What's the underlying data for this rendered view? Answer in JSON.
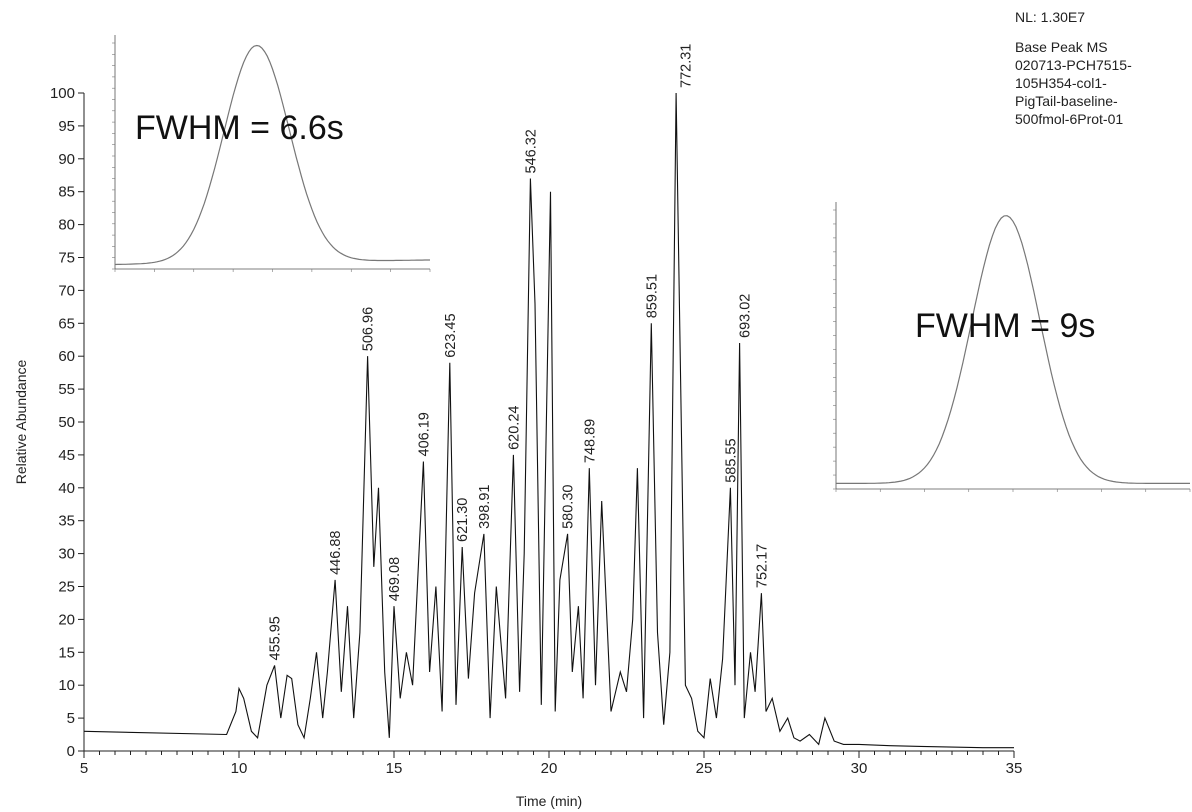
{
  "info": {
    "nl": "NL: 1.30E7",
    "lines": [
      "Base Peak  MS",
      "020713-PCH7515-",
      "105H354-col1-",
      "PigTail-baseline-",
      "500fmol-6Prot-01"
    ]
  },
  "chart_data": [
    {
      "type": "line",
      "role": "main",
      "xlabel": "Time (min)",
      "ylabel": "Relative Abundance",
      "xlim": [
        5,
        35
      ],
      "ylim": [
        0,
        100
      ],
      "xticks": [
        5,
        10,
        15,
        20,
        25,
        30,
        35
      ],
      "yticks": [
        0,
        5,
        10,
        15,
        20,
        25,
        30,
        35,
        40,
        45,
        50,
        55,
        60,
        65,
        70,
        75,
        80,
        85,
        90,
        95,
        100
      ],
      "grid": false,
      "series": [
        {
          "x": [
            5,
            9.6,
            9.9,
            10.0,
            10.15,
            10.4,
            10.6,
            10.9,
            11.15,
            11.35,
            11.55,
            11.7,
            11.9,
            12.1,
            12.3,
            12.5,
            12.7,
            12.85,
            13.1,
            13.3,
            13.5,
            13.7,
            13.9,
            14.15,
            14.35,
            14.5,
            14.7,
            14.85,
            15.0,
            15.2,
            15.4,
            15.6,
            15.95,
            16.15,
            16.35,
            16.55,
            16.8,
            17.0,
            17.2,
            17.4,
            17.6,
            17.9,
            18.1,
            18.3,
            18.6,
            18.85,
            19.05,
            19.2,
            19.4,
            19.55,
            19.75,
            20.05,
            20.2,
            20.35,
            20.6,
            20.75,
            20.95,
            21.1,
            21.3,
            21.5,
            21.7,
            22.0,
            22.3,
            22.5,
            22.7,
            22.85,
            23.05,
            23.3,
            23.5,
            23.7,
            23.9,
            24.1,
            24.4,
            24.6,
            24.8,
            25.0,
            25.2,
            25.4,
            25.6,
            25.85,
            26.0,
            26.15,
            26.3,
            26.5,
            26.65,
            26.85,
            27.0,
            27.2,
            27.45,
            27.7,
            27.9,
            28.1,
            28.4,
            28.7,
            28.9,
            29.2,
            29.5,
            30.0,
            31.0,
            32.0,
            33.0,
            34.0,
            35.0
          ],
          "y": [
            3,
            2.5,
            6,
            9.5,
            8,
            3,
            2,
            10,
            13,
            5,
            11.5,
            11,
            4,
            2,
            8,
            15,
            5,
            12,
            26,
            9,
            22,
            5,
            18,
            60,
            28,
            40,
            12,
            2,
            22,
            8,
            15,
            10,
            44,
            12,
            25,
            6,
            59,
            7,
            31,
            11,
            24,
            33,
            5,
            25,
            8,
            45,
            9,
            30,
            87,
            68,
            7,
            85,
            6,
            26,
            33,
            12,
            22,
            8,
            43,
            10,
            38,
            6,
            12,
            9,
            20,
            43,
            5,
            65,
            18,
            4,
            15,
            100,
            10,
            8,
            3,
            2,
            11,
            5,
            14,
            40,
            10,
            62,
            5,
            15,
            9,
            24,
            6,
            8,
            3,
            5,
            2,
            1.5,
            2.5,
            1,
            5,
            1.5,
            1,
            1,
            0.8,
            0.7,
            0.6,
            0.5,
            0.5
          ]
        }
      ],
      "annotations": [
        {
          "text": "455.95",
          "x": 11.15,
          "y": 13
        },
        {
          "text": "446.88",
          "x": 13.1,
          "y": 26
        },
        {
          "text": "506.96",
          "x": 14.15,
          "y": 60
        },
        {
          "text": "469.08",
          "x": 15.0,
          "y": 22
        },
        {
          "text": "406.19",
          "x": 15.95,
          "y": 44
        },
        {
          "text": "623.45",
          "x": 16.8,
          "y": 59
        },
        {
          "text": "621.30",
          "x": 17.2,
          "y": 31
        },
        {
          "text": "398.91",
          "x": 17.9,
          "y": 33
        },
        {
          "text": "620.24",
          "x": 18.85,
          "y": 45
        },
        {
          "text": "546.32",
          "x": 19.4,
          "y": 87
        },
        {
          "text": "580.30",
          "x": 20.6,
          "y": 33
        },
        {
          "text": "748.89",
          "x": 21.3,
          "y": 43
        },
        {
          "text": "859.51",
          "x": 23.3,
          "y": 65
        },
        {
          "text": "772.31",
          "x": 24.4,
          "y": 100
        },
        {
          "text": "585.55",
          "x": 25.85,
          "y": 40
        },
        {
          "text": "693.02",
          "x": 26.3,
          "y": 62
        },
        {
          "text": "752.17",
          "x": 26.85,
          "y": 24
        }
      ]
    },
    {
      "type": "line",
      "role": "inset",
      "fwhm_label": "FWHM = 6.6s",
      "shape": "gaussian",
      "peak_fraction": 0.45,
      "width_fraction": 0.14
    },
    {
      "type": "line",
      "role": "inset",
      "fwhm_label": "FWHM = 9s",
      "shape": "gaussian",
      "peak_fraction": 0.48,
      "width_fraction": 0.13
    }
  ]
}
